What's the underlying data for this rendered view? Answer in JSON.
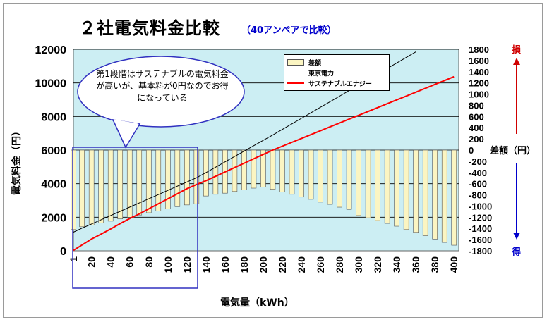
{
  "title": "２社電気料金比較",
  "subtitle": "（40アンペアで比較）",
  "callout": "第1段階はサステナブルの電気料金が高いが、基本料が0円なのでお得になっている",
  "loss_label": "損",
  "gain_label": "得",
  "chart_data": {
    "type": "bar+line",
    "xlabel": "電気量（kWh）",
    "ylabel": "電気料金（円）",
    "y2label": "差額（円）",
    "ylim": [
      0,
      12000
    ],
    "y2lim": [
      -1800,
      1800
    ],
    "yticks": [
      0,
      2000,
      4000,
      6000,
      8000,
      10000,
      12000
    ],
    "y2ticks": [
      -1800,
      -1600,
      -1400,
      -1200,
      -1000,
      -800,
      -600,
      -400,
      -200,
      0,
      200,
      400,
      600,
      800,
      1000,
      1200,
      1400,
      1600,
      1800
    ],
    "xticks": [
      1,
      20,
      40,
      60,
      80,
      100,
      120,
      140,
      160,
      180,
      200,
      220,
      240,
      260,
      280,
      300,
      320,
      340,
      360,
      380,
      400
    ],
    "grid": true,
    "legend": "top-center",
    "x": [
      1,
      10,
      20,
      30,
      40,
      50,
      60,
      70,
      80,
      90,
      100,
      110,
      120,
      130,
      140,
      150,
      160,
      170,
      180,
      190,
      200,
      210,
      220,
      230,
      240,
      250,
      260,
      270,
      280,
      290,
      300,
      310,
      320,
      330,
      340,
      350,
      360,
      370,
      380,
      390,
      400
    ],
    "series": [
      {
        "name": "差額",
        "kind": "bar",
        "axis": "y2",
        "color": "#fbf5c2",
        "values": [
          -1420,
          -1370,
          -1340,
          -1300,
          -1270,
          -1230,
          -1200,
          -1160,
          -1120,
          -1090,
          -1050,
          -1010,
          -980,
          -960,
          -820,
          -790,
          -770,
          -740,
          -710,
          -680,
          -660,
          -700,
          -750,
          -790,
          -840,
          -880,
          -930,
          -970,
          -1020,
          -1060,
          -1170,
          -1210,
          -1260,
          -1310,
          -1360,
          -1420,
          -1470,
          -1530,
          -1590,
          -1650,
          -1700
        ]
      },
      {
        "name": "東京電力",
        "kind": "line",
        "axis": "y",
        "color": "#000000",
        "values": [
          1110,
          1350,
          1600,
          1850,
          2100,
          2350,
          2600,
          2850,
          3100,
          3350,
          3600,
          3850,
          4100,
          4350,
          4660,
          4980,
          5300,
          5620,
          5940,
          6260,
          6580,
          6900,
          7230,
          7560,
          7890,
          8220,
          8550,
          8880,
          9210,
          9540,
          9870,
          10200,
          10530,
          10860,
          11190,
          11520,
          11850,
          12180,
          12510,
          12840,
          13170
        ]
      },
      {
        "name": "サステナブルエナジー",
        "kind": "line",
        "axis": "y",
        "color": "#ff0000",
        "values": [
          30,
          350,
          700,
          1000,
          1300,
          1620,
          1920,
          2200,
          2500,
          2800,
          3100,
          3400,
          3700,
          3950,
          4180,
          4440,
          4700,
          4960,
          5220,
          5480,
          5740,
          6000,
          6230,
          6460,
          6690,
          6920,
          7150,
          7380,
          7610,
          7840,
          8070,
          8300,
          8530,
          8760,
          8990,
          9220,
          9450,
          9680,
          9910,
          10140,
          10370
        ]
      }
    ]
  }
}
